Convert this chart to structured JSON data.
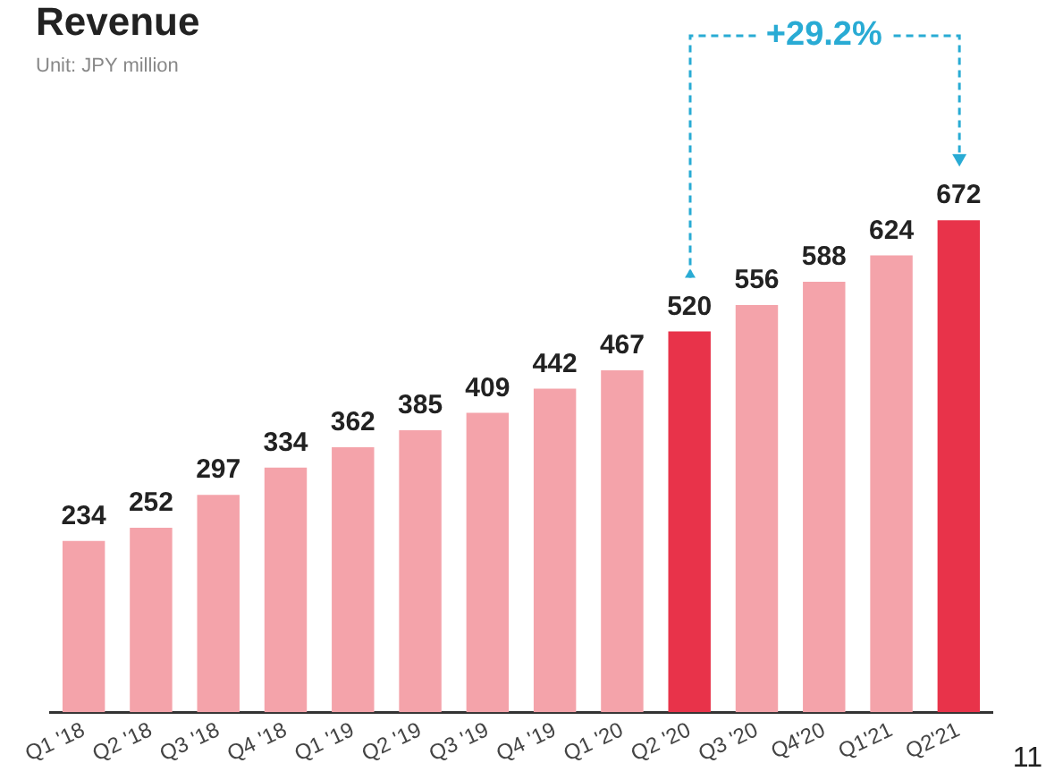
{
  "chart_data": {
    "type": "bar",
    "title": "Revenue",
    "subtitle": "Unit: JPY million",
    "categories": [
      "Q1 '18",
      "Q2 '18",
      "Q3 '18",
      "Q4 '18",
      "Q1 '19",
      "Q2 '19",
      "Q3 '19",
      "Q4 '19",
      "Q1 '20",
      "Q2 '20",
      "Q3 '20",
      "Q4'20",
      "Q1'21",
      "Q2'21"
    ],
    "values": [
      234,
      252,
      297,
      334,
      362,
      385,
      409,
      442,
      467,
      520,
      556,
      588,
      624,
      672
    ],
    "colors": [
      "#f4a3aa",
      "#f4a3aa",
      "#f4a3aa",
      "#f4a3aa",
      "#f4a3aa",
      "#f4a3aa",
      "#f4a3aa",
      "#f4a3aa",
      "#f4a3aa",
      "#e8334a",
      "#f4a3aa",
      "#f4a3aa",
      "#f4a3aa",
      "#e8334a"
    ],
    "tick_labels": "x",
    "grid": false,
    "legend": false,
    "data_labels": true,
    "annotations": [
      "+29.2%",
      "11"
    ]
  }
}
